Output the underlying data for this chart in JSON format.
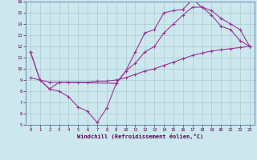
{
  "title": "",
  "xlabel": "Windchill (Refroidissement éolien,°C)",
  "ylabel": "",
  "background_color": "#cce8ee",
  "grid_color": "#aacccc",
  "line_color": "#993399",
  "xlim": [
    -0.5,
    23.5
  ],
  "ylim": [
    5,
    16
  ],
  "xticks": [
    0,
    1,
    2,
    3,
    4,
    5,
    6,
    7,
    8,
    9,
    10,
    11,
    12,
    13,
    14,
    15,
    16,
    17,
    18,
    19,
    20,
    21,
    22,
    23
  ],
  "yticks": [
    5,
    6,
    7,
    8,
    9,
    10,
    11,
    12,
    13,
    14,
    15,
    16
  ],
  "line1_x": [
    0,
    1,
    2,
    3,
    4,
    5,
    6,
    7,
    8,
    9,
    10,
    11,
    12,
    13,
    14,
    15,
    16,
    17,
    18,
    19,
    20,
    21,
    22,
    23
  ],
  "line1_y": [
    11.5,
    9.0,
    8.2,
    8.0,
    7.5,
    6.6,
    6.2,
    5.2,
    6.5,
    8.7,
    9.8,
    11.5,
    13.2,
    13.5,
    15.0,
    15.2,
    15.3,
    16.2,
    15.5,
    14.8,
    13.8,
    13.5,
    12.5,
    12.0
  ],
  "line2_x": [
    0,
    1,
    2,
    3,
    9,
    10,
    11,
    12,
    13,
    14,
    15,
    16,
    17,
    18,
    19,
    20,
    21,
    22,
    23
  ],
  "line2_y": [
    11.5,
    9.0,
    8.2,
    8.8,
    8.7,
    9.8,
    10.5,
    11.5,
    12.0,
    13.2,
    14.0,
    14.8,
    15.5,
    15.5,
    15.2,
    14.5,
    14.0,
    13.5,
    12.0
  ],
  "line3_x": [
    0,
    1,
    2,
    3,
    4,
    5,
    6,
    7,
    8,
    9,
    10,
    11,
    12,
    13,
    14,
    15,
    16,
    17,
    18,
    19,
    20,
    21,
    22,
    23
  ],
  "line3_y": [
    9.2,
    9.0,
    8.8,
    8.8,
    8.8,
    8.8,
    8.8,
    8.9,
    8.9,
    9.0,
    9.2,
    9.5,
    9.8,
    10.0,
    10.3,
    10.6,
    10.9,
    11.2,
    11.4,
    11.6,
    11.7,
    11.8,
    11.9,
    12.0
  ]
}
